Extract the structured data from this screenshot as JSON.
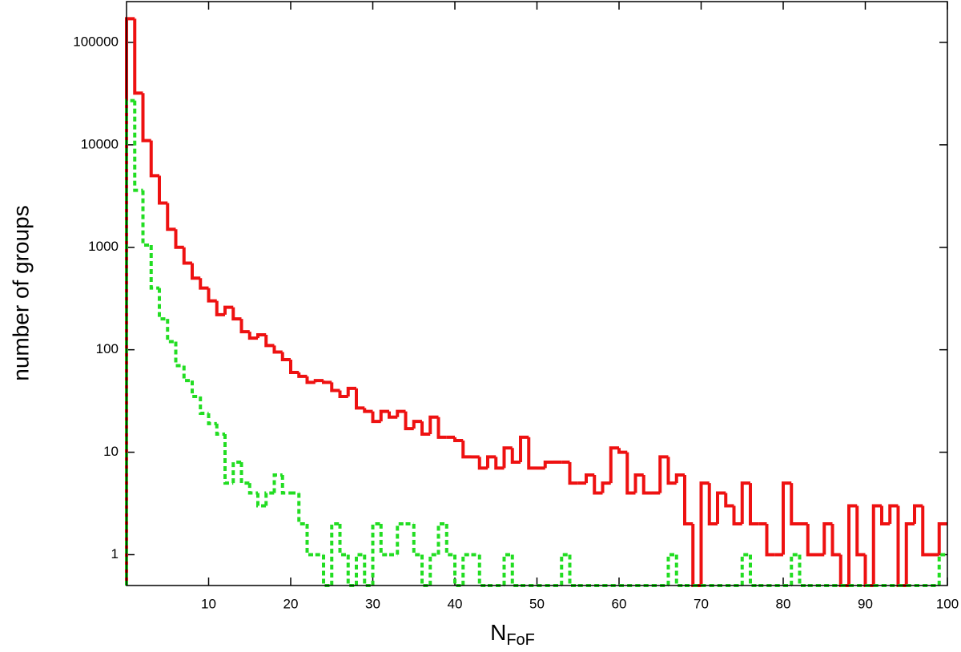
{
  "chart_data": {
    "type": "histogram",
    "x_label": "N",
    "x_label_sub": "FoF",
    "y_label": "number of groups",
    "bins": [
      0,
      1,
      2,
      3,
      4,
      5,
      6,
      7,
      8,
      9,
      10,
      11,
      12,
      13,
      14,
      15,
      16,
      17,
      18,
      19,
      20,
      21,
      22,
      23,
      24,
      25,
      26,
      27,
      28,
      29,
      30,
      31,
      32,
      33,
      34,
      35,
      36,
      37,
      38,
      39,
      40,
      41,
      42,
      43,
      44,
      45,
      46,
      47,
      48,
      49,
      50,
      51,
      52,
      53,
      54,
      55,
      56,
      57,
      58,
      59,
      60,
      61,
      62,
      63,
      64,
      65,
      66,
      67,
      68,
      69,
      70,
      71,
      72,
      73,
      74,
      75,
      76,
      77,
      78,
      79,
      80,
      81,
      82,
      83,
      84,
      85,
      86,
      87,
      88,
      89,
      90,
      91,
      92,
      93,
      94,
      95,
      96,
      97,
      98,
      99,
      100
    ],
    "series": [
      {
        "color": "#ee1111",
        "dash": false,
        "values": [
          170000,
          32000,
          11000,
          5000,
          2700,
          1500,
          1000,
          700,
          500,
          400,
          300,
          220,
          260,
          200,
          150,
          130,
          140,
          110,
          95,
          80,
          60,
          55,
          48,
          50,
          48,
          40,
          35,
          42,
          27,
          25,
          20,
          25,
          22,
          25,
          17,
          20,
          15,
          22,
          14,
          14,
          13,
          9,
          9,
          7,
          9,
          7,
          11,
          8,
          14,
          7,
          7,
          8,
          8,
          8,
          5,
          5,
          6,
          4,
          5,
          11,
          10,
          4,
          6,
          4,
          4,
          9,
          5,
          6,
          2,
          0,
          5,
          2,
          4,
          3,
          2,
          5,
          2,
          2,
          1,
          1,
          5,
          2,
          2,
          1,
          1,
          2,
          1,
          0,
          3,
          1,
          0,
          3,
          2,
          3,
          0,
          2,
          3,
          1,
          1,
          2
        ]
      },
      {
        "color": "#22dd22",
        "dash": true,
        "values": [
          27000,
          3600,
          1050,
          400,
          200,
          120,
          70,
          50,
          35,
          24,
          19,
          15,
          5,
          8,
          5,
          4,
          3,
          4,
          6,
          4,
          4,
          2,
          1,
          1,
          0,
          2,
          1,
          0,
          1,
          0,
          2,
          1,
          1,
          2,
          2,
          1,
          0,
          1,
          2,
          1,
          0,
          1,
          1,
          0,
          0,
          0,
          1,
          0,
          0,
          0,
          0,
          0,
          0,
          1,
          0,
          0,
          0,
          0,
          0,
          0,
          0,
          0,
          0,
          0,
          0,
          0,
          1,
          0,
          0,
          0,
          0,
          0,
          0,
          0,
          0,
          1,
          0,
          0,
          0,
          0,
          0,
          1,
          0,
          0,
          0,
          0,
          0,
          0,
          0,
          0,
          0,
          0,
          0,
          0,
          0,
          0,
          0,
          0,
          0,
          1
        ]
      }
    ],
    "xlim": [
      0,
      100
    ],
    "xticks": [
      10,
      20,
      30,
      40,
      50,
      60,
      70,
      80,
      90,
      100
    ],
    "ylim": [
      0.5,
      250000
    ],
    "yticks": [
      1,
      10,
      100,
      1000,
      10000,
      100000
    ],
    "log_y": true
  }
}
